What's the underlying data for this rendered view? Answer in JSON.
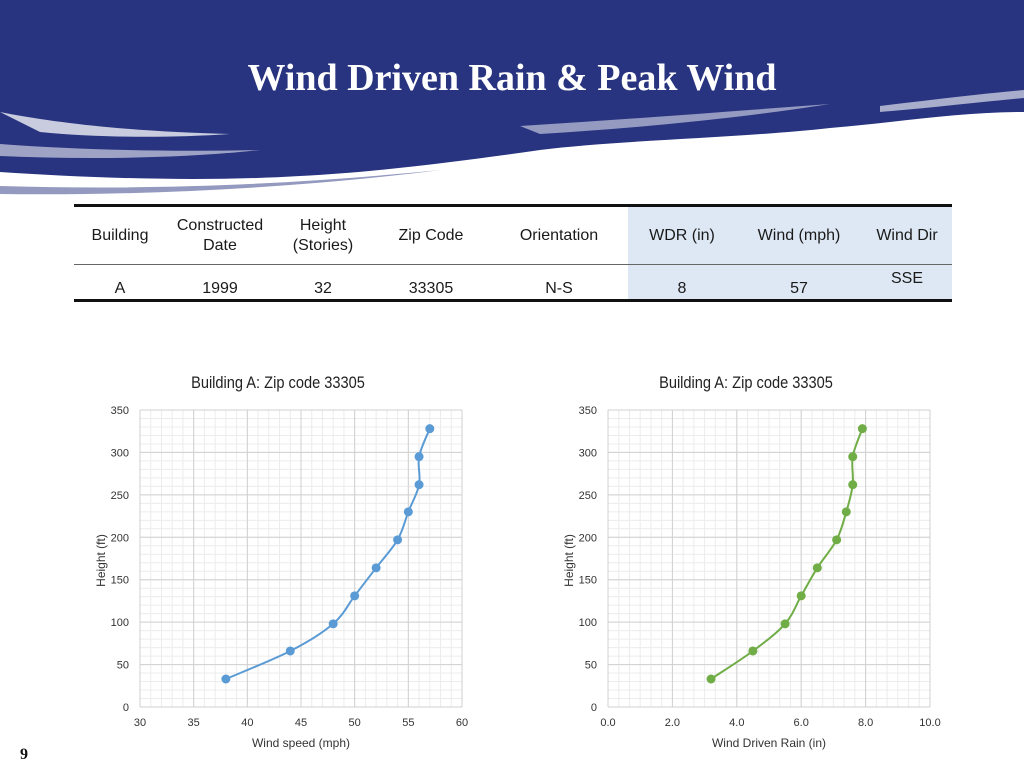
{
  "slide": {
    "title": "Wind Driven Rain & Peak Wind",
    "page_number": "9"
  },
  "table": {
    "headers": [
      "Building",
      "Constructed Date",
      "Height (Stories)",
      "Zip Code",
      "Orientation",
      "WDR (in)",
      "Wind  (mph)",
      "Wind Dir"
    ],
    "row": [
      "A",
      "1999",
      "32",
      "33305",
      "N-S",
      "8",
      "57",
      "SSE"
    ]
  },
  "colors": {
    "banner": "#283480",
    "left_series": "#5b9bd5",
    "right_series": "#70ad47",
    "table_highlight": "#dde8f4"
  },
  "chart_data": [
    {
      "type": "line",
      "title": "Building A: Zip code 33305",
      "xlabel": "Wind speed (mph)",
      "ylabel": "Height (ft)",
      "xlim": [
        30,
        60
      ],
      "ylim": [
        0,
        350
      ],
      "xticks": [
        "30",
        "35",
        "40",
        "45",
        "50",
        "55",
        "60"
      ],
      "yticks": [
        "0",
        "50",
        "100",
        "150",
        "200",
        "250",
        "300",
        "350"
      ],
      "grid": true,
      "color": "#5b9bd5",
      "x": [
        38,
        44,
        48,
        50,
        52,
        54,
        55,
        56,
        56,
        57
      ],
      "y": [
        33,
        66,
        98,
        131,
        164,
        197,
        230,
        262,
        295,
        328
      ]
    },
    {
      "type": "line",
      "title": "Building A: Zip code 33305",
      "xlabel": "Wind Driven Rain (in)",
      "ylabel": "Height (ft)",
      "xlim": [
        0,
        10
      ],
      "ylim": [
        0,
        350
      ],
      "xticks": [
        "0.0",
        "2.0",
        "4.0",
        "6.0",
        "8.0",
        "10.0"
      ],
      "yticks": [
        "0",
        "50",
        "100",
        "150",
        "200",
        "250",
        "300",
        "350"
      ],
      "grid": true,
      "color": "#70ad47",
      "x": [
        3.2,
        4.5,
        5.5,
        6.0,
        6.5,
        7.1,
        7.4,
        7.6,
        7.6,
        7.9
      ],
      "y": [
        33,
        66,
        98,
        131,
        164,
        197,
        230,
        262,
        295,
        328
      ]
    }
  ]
}
